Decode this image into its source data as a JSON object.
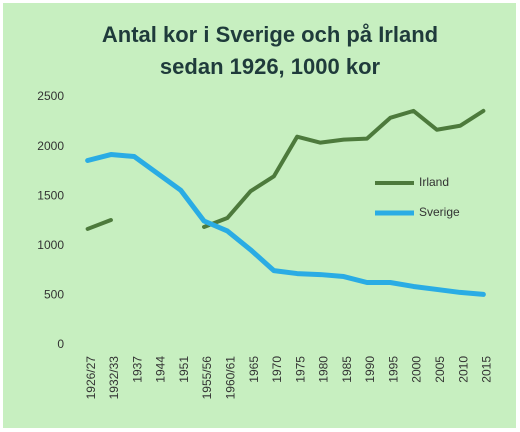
{
  "chart_data": {
    "type": "line",
    "title": [
      "Antal kor i Sverige och på Irland",
      "sedan 1926, 1000 kor"
    ],
    "categories": [
      "1926/27",
      "1932/33",
      "1937",
      "1944",
      "1951",
      "1955/56",
      "1960/61",
      "1965",
      "1970",
      "1975",
      "1980",
      "1985",
      "1990",
      "1995",
      "2000",
      "2005",
      "2010",
      "2015"
    ],
    "series": [
      {
        "name": "Irland",
        "color": "#4d7a3c",
        "values": [
          1170,
          1260,
          null,
          null,
          null,
          1190,
          1280,
          1550,
          1700,
          2100,
          2040,
          2070,
          2080,
          2290,
          2360,
          2170,
          2210,
          2360
        ]
      },
      {
        "name": "Sverige",
        "color": "#2aace4",
        "values": [
          1860,
          1920,
          1900,
          1730,
          1560,
          1250,
          1150,
          960,
          750,
          720,
          710,
          690,
          630,
          630,
          590,
          560,
          530,
          510
        ]
      }
    ],
    "ylim": [
      0,
      2500
    ],
    "yticks": [
      0,
      500,
      1000,
      1500,
      2000,
      2500
    ],
    "grid": false,
    "legend": "right"
  }
}
